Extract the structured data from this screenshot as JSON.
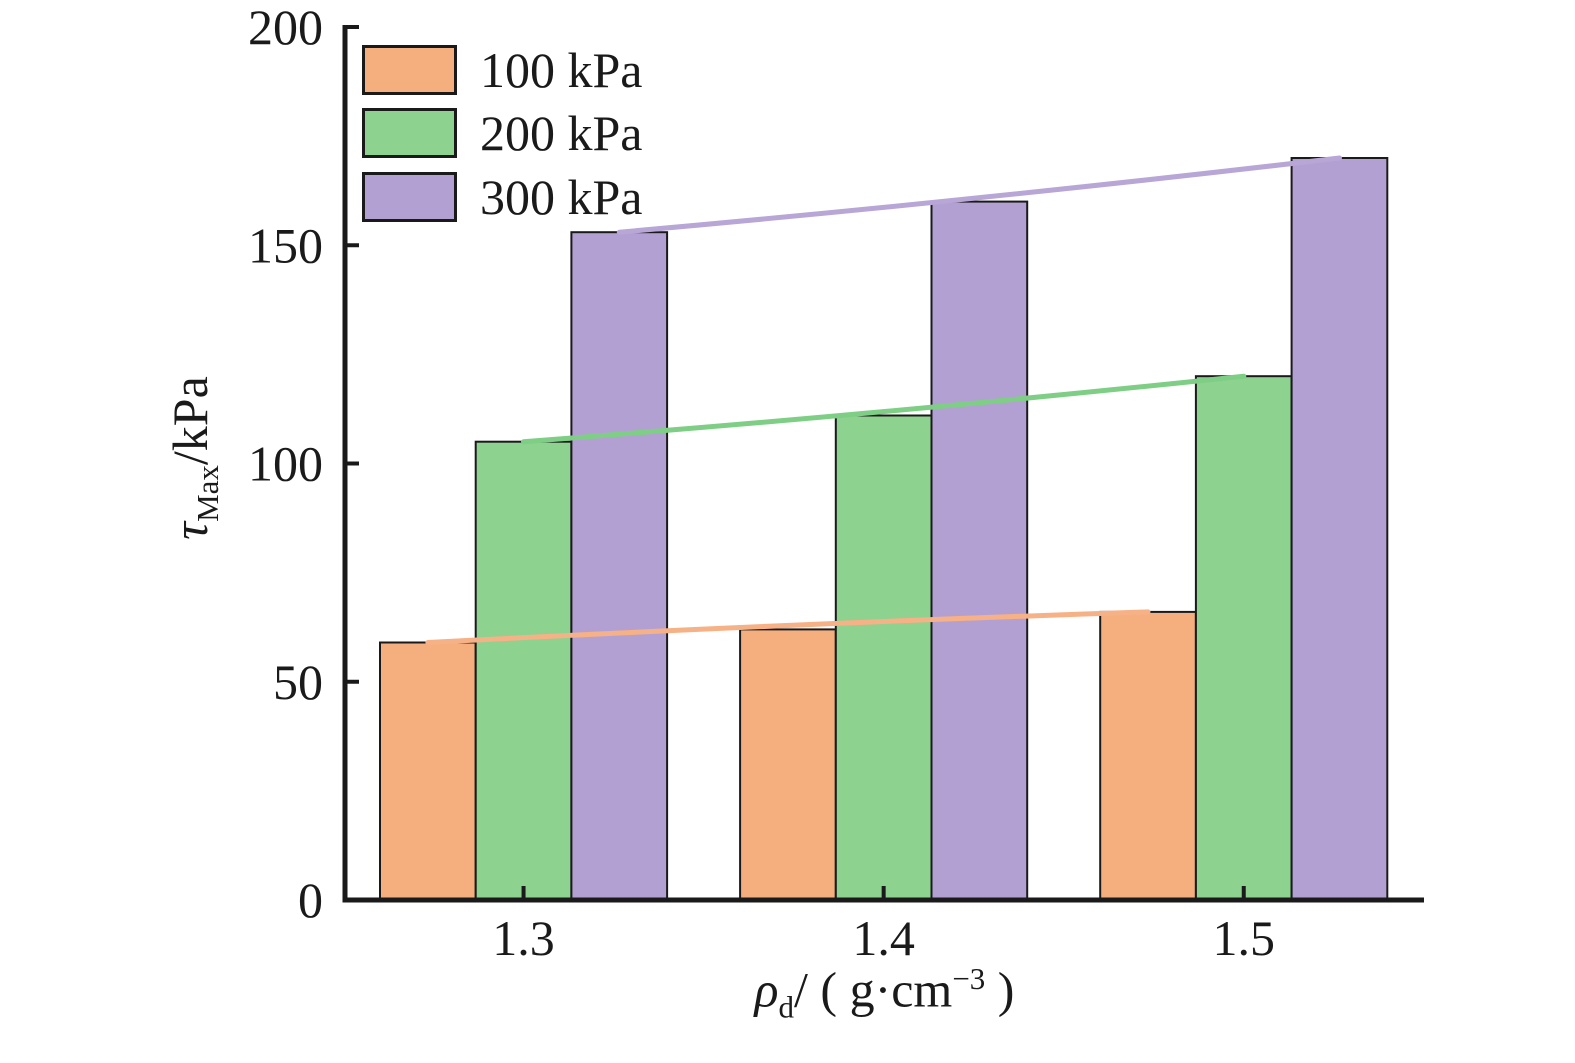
{
  "chart_data": {
    "type": "bar",
    "title": "",
    "categories": [
      "1.3",
      "1.4",
      "1.5"
    ],
    "series": [
      {
        "name": "100 kPa",
        "values": [
          59,
          62,
          66
        ],
        "bar_color": "#F5AE7D",
        "line_color": "#F6B186"
      },
      {
        "name": "200 kPa",
        "values": [
          105,
          111,
          120
        ],
        "bar_color": "#8DD28F",
        "line_color": "#7FCE85"
      },
      {
        "name": "300 kPa",
        "values": [
          153,
          160,
          170
        ],
        "bar_color": "#B3A0D3",
        "line_color": "#B7A6D6"
      }
    ],
    "ylim": [
      0,
      200
    ],
    "yticks": [
      0,
      50,
      100,
      150,
      200
    ],
    "ylabel": "τMax/kPa",
    "xlabel": "ρd/( g·cm−3 )",
    "legend_position": "top-left inside plot",
    "grid": false,
    "trend_lines": true
  },
  "labels": {
    "ylabel": {
      "symbol": "τ",
      "sub": "Max",
      "rest": "/kPa"
    },
    "xlabel": {
      "symbol": "ρ",
      "sub": "d",
      "mid": "/ ( g·cm",
      "sup": "−3",
      "end": " )"
    }
  },
  "colors": {
    "axis": "#1a1a1a",
    "text": "#1a1a1a",
    "background": "#ffffff"
  }
}
